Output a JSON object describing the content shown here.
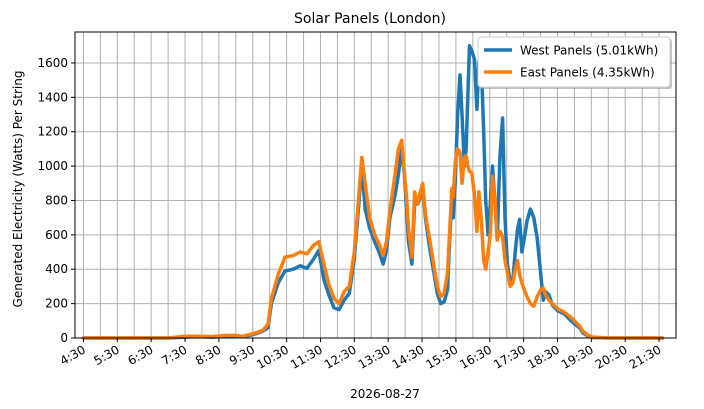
{
  "chart_data": {
    "type": "line",
    "title": "Solar Panels (London)",
    "xlabel": "2026-08-27",
    "ylabel": "Generated Electricity (Watts) Per String",
    "xlim": [
      4.25,
      22.0
    ],
    "ylim": [
      0,
      1780
    ],
    "x_ticks": [
      {
        "label": "4:30",
        "value": 4.5
      },
      {
        "label": "5:30",
        "value": 5.5
      },
      {
        "label": "6:30",
        "value": 6.5
      },
      {
        "label": "7:30",
        "value": 7.5
      },
      {
        "label": "8:30",
        "value": 8.5
      },
      {
        "label": "9:30",
        "value": 9.5
      },
      {
        "label": "10:30",
        "value": 10.5
      },
      {
        "label": "11:30",
        "value": 11.5
      },
      {
        "label": "12:30",
        "value": 12.5
      },
      {
        "label": "13:30",
        "value": 13.5
      },
      {
        "label": "14:30",
        "value": 14.5
      },
      {
        "label": "15:30",
        "value": 15.5
      },
      {
        "label": "16:30",
        "value": 16.5
      },
      {
        "label": "17:30",
        "value": 17.5
      },
      {
        "label": "18:30",
        "value": 18.5
      },
      {
        "label": "19:30",
        "value": 19.5
      },
      {
        "label": "20:30",
        "value": 20.5
      },
      {
        "label": "21:30",
        "value": 21.5
      }
    ],
    "minor_x_gridlines": [
      5.0,
      6.0,
      7.0,
      8.0,
      9.0,
      10.0,
      11.0,
      12.0,
      13.0,
      14.0,
      15.0,
      16.0,
      17.0,
      18.0,
      19.0,
      20.0,
      21.0
    ],
    "y_ticks": [
      0,
      200,
      400,
      600,
      800,
      1000,
      1200,
      1400,
      1600
    ],
    "grid": true,
    "legend_position": "top-right",
    "series": [
      {
        "name": "West Panels (5.01kWh)",
        "color": "#1f77b4",
        "points": [
          [
            4.5,
            0
          ],
          [
            5.0,
            0
          ],
          [
            6.0,
            0
          ],
          [
            7.0,
            0
          ],
          [
            7.5,
            5
          ],
          [
            7.9,
            8
          ],
          [
            8.3,
            5
          ],
          [
            8.7,
            10
          ],
          [
            9.0,
            12
          ],
          [
            9.2,
            8
          ],
          [
            9.4,
            15
          ],
          [
            9.6,
            25
          ],
          [
            9.8,
            40
          ],
          [
            9.95,
            60
          ],
          [
            10.05,
            200
          ],
          [
            10.25,
            320
          ],
          [
            10.45,
            390
          ],
          [
            10.7,
            400
          ],
          [
            10.9,
            420
          ],
          [
            11.1,
            405
          ],
          [
            11.3,
            460
          ],
          [
            11.45,
            510
          ],
          [
            11.6,
            340
          ],
          [
            11.75,
            250
          ],
          [
            11.9,
            175
          ],
          [
            12.05,
            165
          ],
          [
            12.2,
            220
          ],
          [
            12.35,
            260
          ],
          [
            12.5,
            460
          ],
          [
            12.6,
            700
          ],
          [
            12.72,
            1000
          ],
          [
            12.82,
            750
          ],
          [
            12.95,
            640
          ],
          [
            13.1,
            560
          ],
          [
            13.25,
            490
          ],
          [
            13.35,
            430
          ],
          [
            13.45,
            510
          ],
          [
            13.55,
            700
          ],
          [
            13.7,
            830
          ],
          [
            13.8,
            950
          ],
          [
            13.9,
            1100
          ],
          [
            13.98,
            950
          ],
          [
            14.05,
            720
          ],
          [
            14.1,
            560
          ],
          [
            14.2,
            430
          ],
          [
            14.28,
            780
          ],
          [
            14.38,
            780
          ],
          [
            14.45,
            820
          ],
          [
            14.52,
            880
          ],
          [
            14.6,
            700
          ],
          [
            14.72,
            530
          ],
          [
            14.85,
            380
          ],
          [
            14.95,
            260
          ],
          [
            15.05,
            200
          ],
          [
            15.15,
            210
          ],
          [
            15.25,
            280
          ],
          [
            15.3,
            500
          ],
          [
            15.38,
            830
          ],
          [
            15.42,
            700
          ],
          [
            15.48,
            900
          ],
          [
            15.55,
            1300
          ],
          [
            15.62,
            1530
          ],
          [
            15.68,
            1300
          ],
          [
            15.75,
            1000
          ],
          [
            15.8,
            1100
          ],
          [
            15.85,
            1400
          ],
          [
            15.9,
            1700
          ],
          [
            15.97,
            1670
          ],
          [
            16.05,
            1620
          ],
          [
            16.12,
            1330
          ],
          [
            16.18,
            1610
          ],
          [
            16.25,
            1600
          ],
          [
            16.32,
            1200
          ],
          [
            16.38,
            800
          ],
          [
            16.45,
            600
          ],
          [
            16.52,
            800
          ],
          [
            16.58,
            1000
          ],
          [
            16.65,
            800
          ],
          [
            16.72,
            570
          ],
          [
            16.8,
            1050
          ],
          [
            16.88,
            1280
          ],
          [
            16.95,
            700
          ],
          [
            17.02,
            430
          ],
          [
            17.1,
            330
          ],
          [
            17.18,
            330
          ],
          [
            17.25,
            500
          ],
          [
            17.32,
            630
          ],
          [
            17.38,
            690
          ],
          [
            17.45,
            500
          ],
          [
            17.52,
            580
          ],
          [
            17.6,
            680
          ],
          [
            17.7,
            750
          ],
          [
            17.8,
            700
          ],
          [
            17.9,
            580
          ],
          [
            18.0,
            380
          ],
          [
            18.08,
            220
          ],
          [
            18.15,
            270
          ],
          [
            18.25,
            250
          ],
          [
            18.35,
            190
          ],
          [
            18.5,
            160
          ],
          [
            18.7,
            140
          ],
          [
            18.9,
            100
          ],
          [
            19.05,
            75
          ],
          [
            19.15,
            60
          ],
          [
            19.25,
            30
          ],
          [
            19.4,
            10
          ],
          [
            19.55,
            3
          ],
          [
            20.0,
            0
          ],
          [
            21.0,
            0
          ],
          [
            21.6,
            0
          ]
        ]
      },
      {
        "name": "East Panels (4.35kWh)",
        "color": "#ff7f0e",
        "points": [
          [
            4.5,
            0
          ],
          [
            5.0,
            0
          ],
          [
            6.0,
            0
          ],
          [
            7.0,
            0
          ],
          [
            7.5,
            10
          ],
          [
            7.9,
            10
          ],
          [
            8.3,
            8
          ],
          [
            8.7,
            15
          ],
          [
            9.0,
            15
          ],
          [
            9.2,
            10
          ],
          [
            9.4,
            20
          ],
          [
            9.6,
            30
          ],
          [
            9.8,
            45
          ],
          [
            9.95,
            80
          ],
          [
            10.05,
            230
          ],
          [
            10.25,
            370
          ],
          [
            10.45,
            470
          ],
          [
            10.7,
            480
          ],
          [
            10.9,
            500
          ],
          [
            11.1,
            490
          ],
          [
            11.3,
            540
          ],
          [
            11.45,
            560
          ],
          [
            11.6,
            430
          ],
          [
            11.75,
            310
          ],
          [
            11.9,
            230
          ],
          [
            12.05,
            200
          ],
          [
            12.2,
            270
          ],
          [
            12.35,
            300
          ],
          [
            12.5,
            500
          ],
          [
            12.6,
            750
          ],
          [
            12.72,
            1050
          ],
          [
            12.82,
            900
          ],
          [
            12.95,
            700
          ],
          [
            13.1,
            600
          ],
          [
            13.25,
            540
          ],
          [
            13.35,
            480
          ],
          [
            13.45,
            560
          ],
          [
            13.55,
            740
          ],
          [
            13.7,
            950
          ],
          [
            13.8,
            1100
          ],
          [
            13.9,
            1150
          ],
          [
            13.98,
            960
          ],
          [
            14.05,
            800
          ],
          [
            14.1,
            640
          ],
          [
            14.2,
            470
          ],
          [
            14.28,
            850
          ],
          [
            14.38,
            780
          ],
          [
            14.45,
            850
          ],
          [
            14.52,
            900
          ],
          [
            14.6,
            720
          ],
          [
            14.72,
            580
          ],
          [
            14.85,
            420
          ],
          [
            14.95,
            300
          ],
          [
            15.05,
            240
          ],
          [
            15.15,
            260
          ],
          [
            15.25,
            380
          ],
          [
            15.3,
            560
          ],
          [
            15.38,
            870
          ],
          [
            15.42,
            820
          ],
          [
            15.48,
            1020
          ],
          [
            15.55,
            1100
          ],
          [
            15.62,
            1080
          ],
          [
            15.68,
            900
          ],
          [
            15.75,
            1050
          ],
          [
            15.8,
            1060
          ],
          [
            15.85,
            1000
          ],
          [
            15.9,
            970
          ],
          [
            15.97,
            960
          ],
          [
            16.05,
            830
          ],
          [
            16.12,
            620
          ],
          [
            16.18,
            850
          ],
          [
            16.25,
            690
          ],
          [
            16.32,
            450
          ],
          [
            16.38,
            400
          ],
          [
            16.45,
            500
          ],
          [
            16.52,
            620
          ],
          [
            16.58,
            940
          ],
          [
            16.65,
            820
          ],
          [
            16.72,
            570
          ],
          [
            16.8,
            620
          ],
          [
            16.88,
            590
          ],
          [
            16.95,
            450
          ],
          [
            17.02,
            380
          ],
          [
            17.1,
            300
          ],
          [
            17.18,
            320
          ],
          [
            17.25,
            400
          ],
          [
            17.32,
            450
          ],
          [
            17.38,
            370
          ],
          [
            17.45,
            320
          ],
          [
            17.52,
            280
          ],
          [
            17.6,
            240
          ],
          [
            17.7,
            200
          ],
          [
            17.8,
            185
          ],
          [
            17.9,
            240
          ],
          [
            18.0,
            280
          ],
          [
            18.08,
            290
          ],
          [
            18.15,
            250
          ],
          [
            18.25,
            220
          ],
          [
            18.35,
            200
          ],
          [
            18.5,
            170
          ],
          [
            18.7,
            150
          ],
          [
            18.9,
            120
          ],
          [
            19.05,
            90
          ],
          [
            19.15,
            70
          ],
          [
            19.25,
            40
          ],
          [
            19.4,
            15
          ],
          [
            19.55,
            5
          ],
          [
            20.0,
            0
          ],
          [
            21.0,
            0
          ],
          [
            21.6,
            0
          ]
        ]
      }
    ]
  }
}
